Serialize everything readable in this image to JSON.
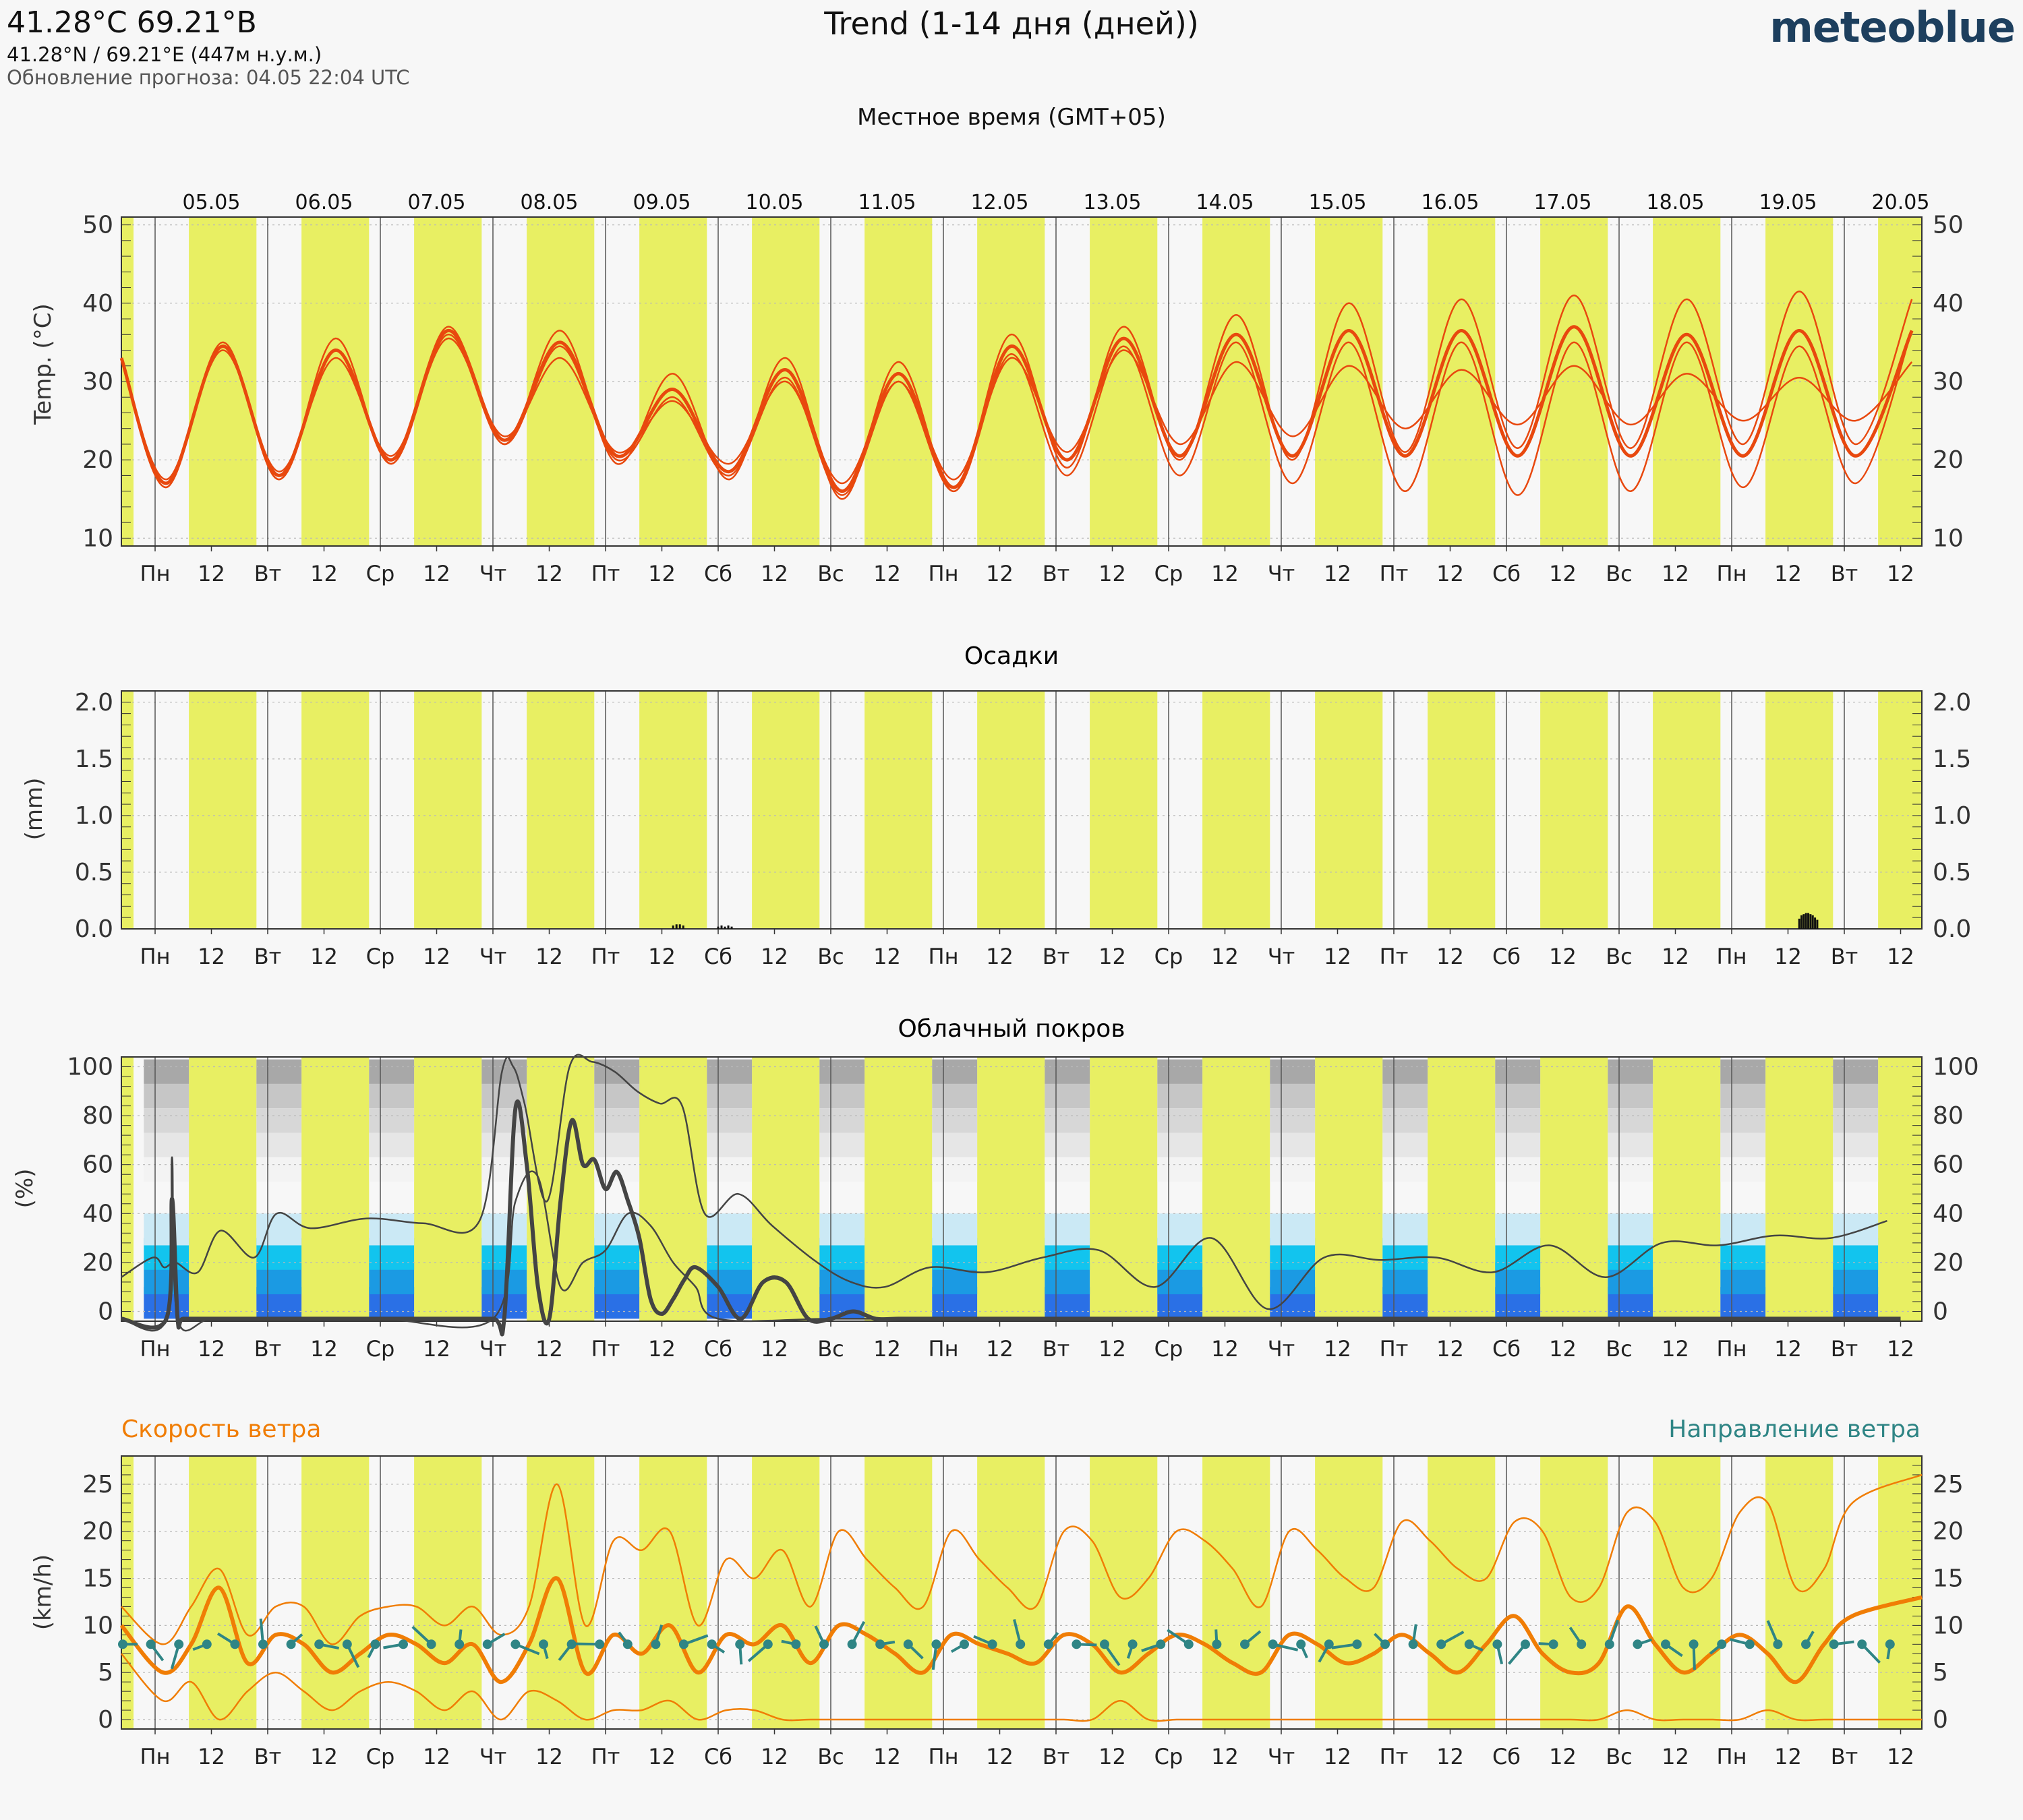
{
  "header": {
    "title": "41.28°C 69.21°В",
    "coords": "41.28°N / 69.21°E (447м н.у.м.)",
    "update": "Обновление прогноза: 04.05 22:04 UTC",
    "chart_title": "Trend (1-14 дня (дней))",
    "brand": "meteoblue",
    "timezone": "Местное время (GMT+05)"
  },
  "colors": {
    "day": "#e8ef63",
    "night": "#f7f7f7",
    "temp": "#e8480e",
    "wind_speed": "#f07d05",
    "wind_dir": "#2f8585",
    "cloud": "#444444",
    "low_cloud_blues": [
      "#2a70e6",
      "#1b9ae3",
      "#12c4ee",
      "#cbe9f5"
    ],
    "high_cloud_greys": [
      "#f3f3f3",
      "#e6e6e6",
      "#d7d7d7",
      "#c6c6c6",
      "#a8a8a8"
    ]
  },
  "axis": {
    "dates": [
      "05.05",
      "06.05",
      "07.05",
      "08.05",
      "09.05",
      "10.05",
      "11.05",
      "12.05",
      "13.05",
      "14.05",
      "15.05",
      "16.05",
      "17.05",
      "18.05",
      "19.05",
      "20.05"
    ],
    "weekday_ticks": [
      "Пн",
      "12",
      "Вт",
      "12",
      "Ср",
      "12",
      "Чт",
      "12",
      "Пт",
      "12",
      "Сб",
      "12",
      "Вс",
      "12",
      "Пн",
      "12",
      "Вт",
      "12",
      "Ср",
      "12",
      "Чт",
      "12",
      "Пт",
      "12",
      "Сб",
      "12",
      "Вс",
      "12",
      "Пн",
      "12",
      "Вт",
      "12"
    ]
  },
  "panels": {
    "temp": {
      "ylabel": "Temp. (°C)",
      "ticks": [
        "10",
        "20",
        "30",
        "40",
        "50"
      ]
    },
    "precip": {
      "title": "Осадки",
      "ylabel": "(mm)",
      "ticks": [
        "0.0",
        "0.5",
        "1.0",
        "1.5",
        "2.0"
      ]
    },
    "cloud": {
      "title": "Облачный покров",
      "ylabel": "(%)",
      "ticks": [
        "0",
        "20",
        "40",
        "60",
        "80",
        "100"
      ]
    },
    "wind": {
      "title_left": "Скорость ветра",
      "title_right": "Направление ветра",
      "ylabel": "(km/h)",
      "ticks": [
        "0",
        "5",
        "10",
        "15",
        "20",
        "25"
      ]
    }
  },
  "chart_data": [
    {
      "type": "line",
      "panel": "temperature",
      "ylim": [
        9,
        51
      ],
      "xlabel": "",
      "ylabel": "Temp. (°C)",
      "x_unit": "days from 05.05 00:00 local",
      "day_min": [
        17,
        18,
        20,
        22.5,
        20.5,
        18.5,
        16,
        16.5,
        20,
        20.5,
        20.5,
        20.5,
        20.5,
        20.5,
        20.5,
        20.5
      ],
      "day_max": [
        34.5,
        34,
        36.5,
        35,
        29,
        31.5,
        31,
        34.5,
        35.5,
        36,
        36.5,
        36.5,
        37,
        36,
        36.5,
        36.5
      ],
      "series": [
        {
          "name": "",
          "x": [
            0,
            0.5,
            1,
            1.5,
            2,
            2.5,
            3,
            3.5,
            4,
            4.5,
            5,
            5.5,
            6,
            6.5,
            7,
            7.5,
            8,
            8.5,
            9,
            9.5,
            10,
            10.5,
            11,
            11.5,
            12,
            12.5,
            13,
            13.5,
            14,
            14.5,
            15,
            15.5
          ],
          "values": [
            17,
            34.5,
            18,
            34,
            20,
            36.5,
            22.5,
            35,
            20.5,
            29,
            18.5,
            31.5,
            16,
            31,
            16.5,
            34.5,
            20,
            35.5,
            20.5,
            36,
            20.5,
            36.5,
            20.5,
            36.5,
            20.5,
            37,
            20.5,
            36,
            20.5,
            36.5,
            20.5,
            36.5
          ]
        },
        {
          "name": "",
          "x": [
            0,
            0.5,
            1,
            1.5,
            2,
            2.5,
            3,
            3.5,
            4,
            4.5,
            5,
            5.5,
            6,
            6.5,
            7,
            7.5,
            8,
            8.5,
            9,
            9.5,
            10,
            10.5,
            11,
            11.5,
            12,
            12.5,
            13,
            13.5,
            14,
            14.5,
            15,
            15.5
          ],
          "values": [
            16.5,
            35,
            17.5,
            35.5,
            19.5,
            37,
            22,
            36.5,
            19.5,
            31,
            17.5,
            33,
            15,
            32.5,
            16,
            36,
            19,
            37,
            20,
            38.5,
            20,
            40,
            21,
            40.5,
            21.5,
            41,
            21.5,
            40.5,
            22,
            41.5,
            22,
            40.5
          ]
        },
        {
          "name": "",
          "x": [
            0,
            0.5,
            1,
            1.5,
            2,
            2.5,
            3,
            3.5,
            4,
            4.5,
            5,
            5.5,
            6,
            6.5,
            7,
            7.5,
            8,
            8.5,
            9,
            9.5,
            10,
            10.5,
            11,
            11.5,
            12,
            12.5,
            13,
            13.5,
            14,
            14.5,
            15,
            15.5
          ],
          "values": [
            17.5,
            34,
            18.5,
            33,
            20.5,
            35.5,
            23,
            33,
            21,
            27.5,
            19.5,
            30,
            17,
            30,
            17.5,
            33,
            21,
            34,
            22,
            32.5,
            23,
            32,
            24,
            31.5,
            24.5,
            32,
            24.5,
            31,
            25,
            30.5,
            25,
            32.5
          ]
        },
        {
          "name": "",
          "x": [
            0,
            0.5,
            1,
            1.5,
            2,
            2.5,
            3,
            3.5,
            4,
            4.5,
            5,
            5.5,
            6,
            6.5,
            7,
            7.5,
            8,
            8.5,
            9,
            9.5,
            10,
            10.5,
            11,
            11.5,
            12,
            12.5,
            13,
            13.5,
            14,
            14.5,
            15,
            15.5
          ],
          "values": [
            16.5,
            34.5,
            17.5,
            34,
            19.5,
            36,
            22,
            34.5,
            20,
            28,
            18,
            30.5,
            15.5,
            30,
            16,
            33.5,
            18,
            34.5,
            18,
            35,
            17,
            35,
            16,
            35,
            15.5,
            35,
            16,
            35,
            16.5,
            34.5,
            17,
            36.5
          ]
        }
      ]
    },
    {
      "type": "bar",
      "panel": "precipitation",
      "ylim": [
        0,
        2.1
      ],
      "xlabel": "",
      "ylabel": "(mm)",
      "series": [
        {
          "name": "",
          "x": [
            4.6,
            4.63,
            4.66,
            4.69,
            5.0,
            5.03,
            5.06,
            5.09,
            5.12,
            14.6,
            14.62,
            14.64,
            14.66,
            14.68,
            14.7,
            14.72,
            14.74,
            14.76
          ],
          "values": [
            0.03,
            0.04,
            0.04,
            0.03,
            0.02,
            0.03,
            0.02,
            0.03,
            0.02,
            0.09,
            0.12,
            0.13,
            0.14,
            0.14,
            0.13,
            0.12,
            0.1,
            0.08
          ]
        }
      ]
    },
    {
      "type": "line",
      "panel": "cloud_cover",
      "ylim": [
        -4,
        104
      ],
      "xlabel": "",
      "ylabel": "(%)",
      "series": [
        {
          "name": "",
          "x": [
            0,
            0.1,
            0.15,
            0.2,
            0.25,
            0.5,
            1,
            1.5,
            2,
            2.5,
            3,
            3.1,
            3.2,
            3.3,
            3.4,
            3.5,
            3.6,
            3.7,
            3.8,
            3.9,
            4.0,
            4.1,
            4.2,
            4.3,
            4.4,
            4.5,
            4.6,
            4.7,
            4.8,
            5.0,
            5.2,
            5.4,
            5.6,
            5.8,
            6.0,
            6.2,
            6.4,
            6.6,
            6.8,
            7.0,
            8,
            9,
            10,
            11,
            12,
            13,
            14,
            15,
            15.5
          ],
          "values": [
            -3,
            -3,
            46,
            -3,
            -3,
            -3,
            -3,
            -3,
            -3,
            -3,
            -3,
            -3,
            83,
            60,
            10,
            -3,
            45,
            78,
            60,
            62,
            50,
            57,
            45,
            30,
            5,
            -1,
            5,
            13,
            18,
            10,
            -3,
            12,
            12,
            -3,
            -3,
            0,
            -3,
            -3,
            -3,
            -3,
            -3,
            -3,
            -3,
            -3,
            -3,
            -3,
            -3,
            -3,
            -3
          ]
        },
        {
          "name": "",
          "x": [
            0,
            0.1,
            0.2,
            0.3,
            0.5,
            0.7,
            1.0,
            1.2,
            1.5,
            2.0,
            2.5,
            3.0,
            3.2,
            3.3,
            3.4,
            3.6,
            3.8,
            4.0,
            4.2,
            4.4,
            4.6,
            4.8,
            5.0,
            5.3,
            5.6,
            6.0,
            6.3,
            6.6,
            7.0,
            7.5,
            8.0,
            8.5,
            9.0,
            9.5,
            10.0,
            10.5,
            11.0,
            11.5,
            12.0,
            12.5,
            13.0,
            13.5,
            14.0,
            14.5,
            15.0,
            15.5
          ],
          "values": [
            14,
            22,
            18,
            20,
            16,
            33,
            22,
            40,
            34,
            38,
            36,
            37,
            98,
            100,
            85,
            45,
            100,
            102,
            98,
            90,
            85,
            84,
            40,
            48,
            35,
            20,
            12,
            10,
            18,
            16,
            22,
            25,
            10,
            30,
            1,
            22,
            21,
            22,
            16,
            27,
            14,
            28,
            27,
            31,
            30,
            37
          ]
        },
        {
          "name": "",
          "x": [
            0,
            0.1,
            0.15,
            0.2,
            0.5,
            1,
            2,
            3,
            3.2,
            3.4,
            3.6,
            3.8,
            4.0,
            4.2,
            4.4,
            4.6,
            4.8,
            5,
            6,
            7,
            8,
            9,
            10,
            11,
            12,
            13,
            14,
            15,
            15.5
          ],
          "values": [
            -3,
            -3,
            63,
            -3,
            -3,
            -3,
            -3,
            -3,
            45,
            55,
            10,
            20,
            25,
            40,
            35,
            20,
            10,
            -3,
            -3,
            -3,
            -3,
            -3,
            -3,
            -3,
            -3,
            -3,
            -3,
            -3,
            -3
          ]
        }
      ]
    },
    {
      "type": "line",
      "panel": "wind",
      "ylim": [
        -1,
        28
      ],
      "xlabel": "",
      "ylabel": "(km/h)",
      "series": [
        {
          "name": "Скорость ветра",
          "x": [
            0,
            0.25,
            0.5,
            0.75,
            1,
            1.25,
            1.5,
            1.75,
            2,
            2.25,
            2.5,
            2.75,
            3,
            3.25,
            3.5,
            3.75,
            4,
            4.25,
            4.5,
            4.75,
            5,
            5.25,
            5.5,
            5.75,
            6,
            6.25,
            6.5,
            6.75,
            7,
            7.25,
            7.5,
            7.75,
            8,
            8.25,
            8.5,
            8.75,
            9,
            9.25,
            9.5,
            9.75,
            10,
            10.25,
            10.5,
            10.75,
            11,
            11.25,
            11.5,
            11.75,
            12,
            12.25,
            12.5,
            12.75,
            13,
            13.25,
            13.5,
            13.75,
            14,
            14.25,
            14.5,
            14.75,
            15,
            15.25,
            15.5
          ],
          "values": [
            10,
            5,
            8,
            14,
            6,
            9,
            8,
            5,
            7,
            9,
            8,
            6,
            8,
            4,
            8,
            15,
            5,
            9,
            7,
            10,
            5,
            9,
            8,
            10,
            6,
            10,
            9,
            7,
            5,
            9,
            8,
            7,
            6,
            9,
            8,
            5,
            7,
            9,
            8,
            6,
            5,
            9,
            8,
            6,
            7,
            9,
            7,
            5,
            8,
            11,
            7,
            5,
            6,
            12,
            8,
            5,
            7,
            9,
            7,
            4,
            8,
            11,
            13
          ]
        },
        {
          "name": "",
          "x": [
            0,
            0.25,
            0.5,
            0.75,
            1,
            1.25,
            1.5,
            1.75,
            2,
            2.25,
            2.5,
            2.75,
            3,
            3.25,
            3.5,
            3.75,
            4,
            4.25,
            4.5,
            4.75,
            5,
            5.25,
            5.5,
            5.75,
            6,
            6.25,
            6.5,
            6.75,
            7,
            7.25,
            7.5,
            7.75,
            8,
            8.25,
            8.5,
            8.75,
            9,
            9.25,
            9.5,
            9.75,
            10,
            10.25,
            10.5,
            10.75,
            11,
            11.25,
            11.5,
            11.75,
            12,
            12.25,
            12.5,
            12.75,
            13,
            13.25,
            13.5,
            13.75,
            14,
            14.25,
            14.5,
            14.75,
            15,
            15.25,
            15.5
          ],
          "values": [
            12,
            8,
            12,
            16,
            9,
            12,
            12,
            8,
            11,
            12,
            12,
            10,
            12,
            9,
            12,
            25,
            10,
            19,
            18,
            20,
            10,
            17,
            15,
            18,
            12,
            20,
            17,
            14,
            12,
            20,
            17,
            14,
            12,
            20,
            19,
            13,
            15,
            20,
            19,
            16,
            12,
            20,
            18,
            15,
            14,
            21,
            19,
            16,
            15,
            21,
            20,
            13,
            14,
            22,
            21,
            14,
            15,
            22,
            23,
            14,
            16,
            23,
            26
          ]
        },
        {
          "name": "",
          "x": [
            0,
            0.25,
            0.5,
            0.75,
            1,
            1.25,
            1.5,
            1.75,
            2,
            2.25,
            2.5,
            2.75,
            3,
            3.25,
            3.5,
            3.75,
            4,
            4.25,
            4.5,
            4.75,
            5,
            5.25,
            5.5,
            5.75,
            6,
            6.25,
            6.5,
            6.75,
            7,
            7.25,
            7.5,
            7.75,
            8,
            8.25,
            8.5,
            8.75,
            9,
            9.25,
            9.5,
            9.75,
            10,
            10.25,
            10.5,
            10.75,
            11,
            11.25,
            11.5,
            11.75,
            12,
            12.25,
            12.5,
            12.75,
            13,
            13.25,
            13.5,
            13.75,
            14,
            14.25,
            14.5,
            14.75,
            15,
            15.25,
            15.5
          ],
          "values": [
            7,
            2,
            4,
            0,
            3,
            5,
            3,
            1,
            3,
            4,
            3,
            1,
            3,
            0,
            3,
            2,
            0,
            1,
            1,
            2,
            0,
            1,
            1,
            0,
            0,
            0,
            0,
            0,
            0,
            0,
            0,
            0,
            0,
            0,
            0,
            2,
            0,
            0,
            0,
            0,
            0,
            0,
            0,
            0,
            0,
            0,
            0,
            0,
            0,
            0,
            0,
            0,
            0,
            1,
            0,
            0,
            0,
            0,
            1,
            0,
            0,
            0,
            0
          ]
        }
      ]
    }
  ]
}
